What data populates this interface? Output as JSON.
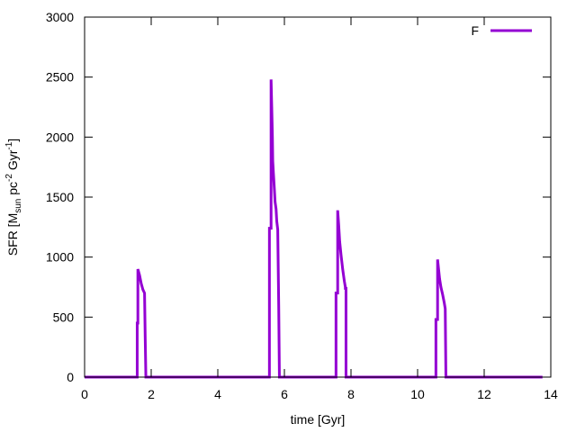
{
  "chart_data": {
    "type": "line",
    "title": "",
    "xlabel": "time [Gyr]",
    "ylabel": {
      "prefix": "SFR [M",
      "sub1": "sun",
      "mid1": " pc",
      "sup1": "-2",
      "mid2": " Gyr",
      "sup2": "-1",
      "suffix": "]"
    },
    "xlim": [
      0,
      14
    ],
    "ylim": [
      0,
      3000
    ],
    "xticks": [
      0,
      2,
      4,
      6,
      8,
      10,
      12,
      14
    ],
    "yticks": [
      0,
      500,
      1000,
      1500,
      2000,
      2500,
      3000
    ],
    "grid": false,
    "legend_position": "top-right",
    "series": [
      {
        "name": "F",
        "color": "#9400d3",
        "x": [
          0,
          1.58,
          1.58,
          1.6,
          1.6,
          1.65,
          1.7,
          1.75,
          1.8,
          1.8,
          1.82,
          1.82,
          1.84,
          1.84,
          5.55,
          5.55,
          5.6,
          5.6,
          5.62,
          5.64,
          5.65,
          5.67,
          5.7,
          5.72,
          5.75,
          5.77,
          5.8,
          5.8,
          5.83,
          5.83,
          5.85,
          5.85,
          7.55,
          7.55,
          7.6,
          7.6,
          7.63,
          7.66,
          7.7,
          7.75,
          7.8,
          7.83,
          7.83,
          7.85,
          7.85,
          10.55,
          10.55,
          10.6,
          10.6,
          10.63,
          10.66,
          10.7,
          10.75,
          10.8,
          10.83,
          10.83,
          10.85,
          10.85,
          13.75
        ],
        "y": [
          0,
          0,
          450,
          450,
          900,
          850,
          780,
          730,
          700,
          700,
          330,
          330,
          0,
          0,
          0,
          1240,
          1240,
          2480,
          2250,
          2000,
          1800,
          1700,
          1560,
          1460,
          1400,
          1300,
          1230,
          1230,
          580,
          580,
          0,
          0,
          0,
          700,
          700,
          1390,
          1270,
          1130,
          1020,
          900,
          800,
          750,
          740,
          740,
          0,
          0,
          480,
          480,
          980,
          900,
          820,
          750,
          690,
          620,
          570,
          570,
          0,
          0,
          0
        ]
      }
    ]
  }
}
